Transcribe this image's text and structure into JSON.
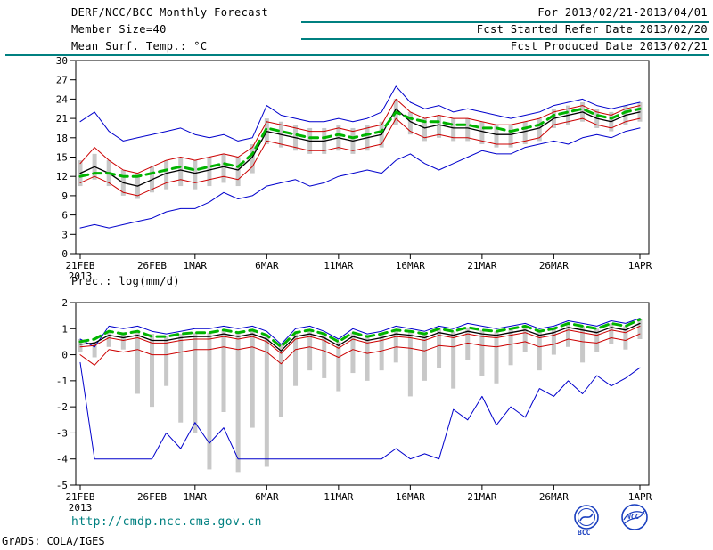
{
  "header": {
    "title": "DERF/NCC/BCC Monthly Forecast",
    "member_size": "Member Size=40",
    "temp_label": "Mean Surf. Temp.: °C",
    "for_range": "For 2013/02/21-2013/04/01",
    "fcst_started": "Fcst Started Refer Date 2013/02/20",
    "fcst_produced": "Fcst Produced Date 2013/02/21"
  },
  "footer": {
    "url": "http://cmdp.ncc.cma.gov.cn",
    "grads_credit": "GrADS: COLA/IGES",
    "logo_bcc": "BCC",
    "logo_ncc": "NCC"
  },
  "colors": {
    "rule": "#008080",
    "url_text": "#008080",
    "blue_line": "#0000cc",
    "red_line": "#cc0000",
    "black_line": "#000000",
    "green_dashed": "#00b400",
    "spread_bar": "#c8c8c8"
  },
  "chart_data": [
    {
      "type": "line",
      "title": "Mean Surf. Temp.: °C",
      "ylabel": "°C",
      "ylim": [
        0,
        30
      ],
      "yticks": [
        0,
        3,
        6,
        9,
        12,
        15,
        18,
        21,
        24,
        27,
        30
      ],
      "x_tick_labels": [
        "21FEB",
        "26FEB",
        "1MAR",
        "6MAR",
        "11MAR",
        "16MAR",
        "21MAR",
        "26MAR",
        "1APR"
      ],
      "x_tick_positions": [
        0,
        5,
        8,
        13,
        18,
        23,
        28,
        33,
        39
      ],
      "x_sub_label": "2013",
      "grid": false,
      "legend": "none",
      "bars": {
        "name": "ensemble-spread-bars",
        "color": "#c8c8c8",
        "low": [
          10.5,
          11.5,
          10.5,
          9,
          8.5,
          9.5,
          10,
          10.5,
          10,
          10.5,
          11,
          10.5,
          12.5,
          17,
          16.5,
          16,
          15.5,
          15.5,
          16,
          15.5,
          16,
          16.5,
          20,
          18.5,
          17.5,
          18,
          17.5,
          17.5,
          17,
          16.5,
          16.5,
          17,
          17.5,
          19.5,
          20,
          20.5,
          19.5,
          19,
          20,
          20.5
        ],
        "high": [
          14.5,
          15.5,
          14.5,
          13,
          12.5,
          13.5,
          14.5,
          15,
          14.5,
          15,
          15.5,
          15,
          17,
          21,
          20.5,
          20,
          19.5,
          19.5,
          20,
          19.5,
          20,
          20.5,
          24,
          22,
          21,
          21.5,
          21,
          21,
          20.5,
          20,
          20,
          20.5,
          21,
          22.5,
          23,
          23.5,
          22.5,
          22,
          23,
          23.5
        ]
      },
      "series": [
        {
          "name": "blue-upper-envelope",
          "color": "#0000cc",
          "width": 1,
          "values": [
            20.5,
            22,
            19,
            17.5,
            18,
            18.5,
            19,
            19.5,
            18.5,
            18,
            18.5,
            17.5,
            18,
            23,
            21.5,
            21,
            20.5,
            20.5,
            21,
            20.5,
            21,
            22,
            26,
            23.5,
            22.5,
            23,
            22,
            22.5,
            22,
            21.5,
            21,
            21.5,
            22,
            23,
            23.5,
            24,
            23,
            22.5,
            23,
            23.5
          ]
        },
        {
          "name": "red-upper-line",
          "color": "#cc0000",
          "width": 1,
          "values": [
            14,
            16.5,
            14.5,
            13,
            12.5,
            13.5,
            14.5,
            15,
            14.5,
            15,
            15.5,
            15,
            16.5,
            20.5,
            20,
            19.5,
            19,
            19,
            19.5,
            19,
            19.5,
            20,
            24,
            22,
            21,
            21.5,
            21,
            21,
            20.5,
            20,
            20,
            20.5,
            21,
            22,
            22.5,
            23,
            22,
            21.5,
            22.5,
            23
          ]
        },
        {
          "name": "red-lower-line",
          "color": "#cc0000",
          "width": 1,
          "values": [
            11,
            12,
            11,
            9.5,
            9,
            10,
            11,
            11.5,
            11,
            11.5,
            12,
            11.5,
            13.5,
            17.5,
            17,
            16.5,
            16,
            16,
            16.5,
            16,
            16.5,
            17,
            21,
            19,
            18,
            18.5,
            18,
            18,
            17.5,
            17,
            17,
            17.5,
            18,
            20,
            20.5,
            21,
            20,
            19.5,
            20.5,
            21
          ]
        },
        {
          "name": "blue-lower-envelope",
          "color": "#0000cc",
          "width": 1,
          "values": [
            4,
            4.5,
            4,
            4.5,
            5,
            5.5,
            6.5,
            7,
            7,
            8,
            9.5,
            8.5,
            9,
            10.5,
            11,
            11.5,
            10.5,
            11,
            12,
            12.5,
            13,
            12.5,
            14.5,
            15.5,
            14,
            13,
            14,
            15,
            16,
            15.5,
            15.5,
            16.5,
            17,
            17.5,
            17,
            18,
            18.5,
            18,
            19,
            19.5
          ]
        },
        {
          "name": "black-line",
          "color": "#000000",
          "width": 1.3,
          "values": [
            12.5,
            13.5,
            12.5,
            11,
            10.5,
            11.5,
            12.5,
            13,
            12.5,
            13,
            13.5,
            13,
            15,
            19,
            18.5,
            18,
            17.5,
            17.5,
            18,
            17.5,
            18,
            18.5,
            22.5,
            20.5,
            19.5,
            20,
            19.5,
            19.5,
            19,
            18.5,
            18.5,
            19,
            19.5,
            21,
            21.5,
            22,
            21,
            20.5,
            21.5,
            22
          ]
        },
        {
          "name": "green-dashed-line",
          "color": "#00b400",
          "width": 3,
          "dash": "9,6",
          "values": [
            12,
            12.5,
            12.5,
            12,
            12,
            12.5,
            13,
            13.5,
            13,
            13.5,
            14,
            13.5,
            15.5,
            19.5,
            19,
            18.5,
            18,
            18,
            18.5,
            18,
            18.5,
            19,
            22,
            21,
            20.5,
            20.5,
            20,
            20,
            19.5,
            19.5,
            19,
            19.5,
            20,
            21.5,
            22,
            22.5,
            21.5,
            21,
            22,
            22.5
          ]
        }
      ]
    },
    {
      "type": "line",
      "title": "Prec.: log(mm/d)",
      "ylabel": "log(mm/d)",
      "ylim": [
        -5,
        2
      ],
      "yticks": [
        -5,
        -4,
        -3,
        -2,
        -1,
        0,
        1,
        2
      ],
      "x_tick_labels": [
        "21FEB",
        "26FEB",
        "1MAR",
        "6MAR",
        "11MAR",
        "16MAR",
        "21MAR",
        "26MAR",
        "1APR"
      ],
      "x_tick_positions": [
        0,
        5,
        8,
        13,
        18,
        23,
        28,
        33,
        39
      ],
      "x_sub_label": "2013",
      "grid": false,
      "legend": "none",
      "bars": {
        "name": "ensemble-spread-bars",
        "color": "#c8c8c8",
        "low": [
          0.1,
          -0.1,
          0.3,
          0.2,
          -1.5,
          -2.0,
          -1.2,
          -2.6,
          -3.0,
          -4.4,
          -2.2,
          -4.5,
          -2.8,
          -4.3,
          -2.4,
          -1.2,
          -0.6,
          -0.9,
          -1.4,
          -0.7,
          -1.0,
          -0.6,
          -0.3,
          -1.6,
          -1.0,
          -0.5,
          -1.3,
          -0.2,
          -0.8,
          -1.1,
          -0.4,
          0.1,
          -0.6,
          0.0,
          0.3,
          -0.3,
          0.1,
          0.4,
          0.2,
          0.6
        ],
        "high": [
          0.6,
          0.5,
          0.9,
          0.8,
          0.9,
          0.8,
          0.7,
          0.8,
          0.85,
          0.85,
          0.95,
          0.85,
          0.95,
          0.75,
          0.4,
          0.85,
          0.95,
          0.8,
          0.5,
          0.85,
          0.7,
          0.8,
          0.95,
          0.9,
          0.8,
          1.0,
          0.9,
          1.05,
          0.95,
          0.9,
          1.0,
          1.1,
          0.9,
          1.0,
          1.2,
          1.1,
          1.0,
          1.2,
          1.1,
          1.35
        ]
      },
      "series": [
        {
          "name": "blue-upper-envelope",
          "color": "#0000cc",
          "width": 1,
          "values": [
            0.6,
            0.3,
            1.1,
            1.0,
            1.1,
            0.9,
            0.8,
            0.9,
            1.0,
            1.0,
            1.1,
            1.0,
            1.1,
            0.9,
            0.4,
            1.0,
            1.1,
            0.9,
            0.6,
            1.0,
            0.8,
            0.9,
            1.1,
            1.0,
            0.9,
            1.1,
            1.0,
            1.2,
            1.1,
            1.0,
            1.1,
            1.2,
            1.0,
            1.1,
            1.3,
            1.2,
            1.1,
            1.3,
            1.2,
            1.4
          ]
        },
        {
          "name": "red-upper-line",
          "color": "#cc0000",
          "width": 1,
          "values": [
            0.3,
            0.35,
            0.65,
            0.55,
            0.65,
            0.45,
            0.45,
            0.55,
            0.6,
            0.6,
            0.7,
            0.6,
            0.7,
            0.5,
            0.05,
            0.6,
            0.7,
            0.55,
            0.25,
            0.6,
            0.45,
            0.55,
            0.7,
            0.65,
            0.55,
            0.75,
            0.65,
            0.8,
            0.7,
            0.65,
            0.75,
            0.85,
            0.65,
            0.75,
            0.95,
            0.85,
            0.75,
            0.95,
            0.85,
            1.1
          ]
        },
        {
          "name": "red-lower-line",
          "color": "#cc0000",
          "width": 1,
          "values": [
            0.0,
            -0.4,
            0.2,
            0.1,
            0.2,
            0.0,
            0.0,
            0.1,
            0.2,
            0.2,
            0.3,
            0.2,
            0.3,
            0.1,
            -0.35,
            0.2,
            0.3,
            0.15,
            -0.1,
            0.2,
            0.05,
            0.15,
            0.3,
            0.25,
            0.15,
            0.35,
            0.3,
            0.45,
            0.35,
            0.3,
            0.4,
            0.5,
            0.3,
            0.4,
            0.6,
            0.5,
            0.45,
            0.65,
            0.55,
            0.8
          ]
        },
        {
          "name": "blue-lower-envelope",
          "color": "#0000cc",
          "width": 1,
          "values": [
            -0.3,
            -4,
            -4,
            -4,
            -4,
            -4,
            -3,
            -3.6,
            -2.6,
            -3.4,
            -2.8,
            -4,
            -4,
            -4,
            -4,
            -4,
            -4,
            -4,
            -4,
            -4,
            -4,
            -4,
            -3.6,
            -4,
            -3.8,
            -4,
            -2.1,
            -2.5,
            -1.6,
            -2.7,
            -2.0,
            -2.4,
            -1.3,
            -1.6,
            -1.0,
            -1.5,
            -0.8,
            -1.2,
            -0.9,
            -0.5
          ]
        },
        {
          "name": "black-line",
          "color": "#000000",
          "width": 1.3,
          "values": [
            0.4,
            0.45,
            0.75,
            0.65,
            0.75,
            0.55,
            0.55,
            0.65,
            0.7,
            0.7,
            0.8,
            0.7,
            0.8,
            0.6,
            0.15,
            0.7,
            0.8,
            0.65,
            0.35,
            0.7,
            0.55,
            0.65,
            0.8,
            0.75,
            0.65,
            0.85,
            0.75,
            0.9,
            0.8,
            0.75,
            0.85,
            0.95,
            0.75,
            0.85,
            1.05,
            0.95,
            0.85,
            1.05,
            0.95,
            1.2
          ]
        },
        {
          "name": "green-dashed-line",
          "color": "#00b400",
          "width": 3,
          "dash": "9,6",
          "values": [
            0.5,
            0.6,
            0.9,
            0.8,
            0.9,
            0.7,
            0.7,
            0.8,
            0.85,
            0.85,
            0.95,
            0.85,
            0.95,
            0.75,
            0.3,
            0.85,
            0.95,
            0.8,
            0.5,
            0.85,
            0.7,
            0.8,
            0.95,
            0.9,
            0.8,
            1.0,
            0.9,
            1.05,
            0.95,
            0.9,
            1.0,
            1.1,
            0.9,
            1.0,
            1.2,
            1.1,
            1.0,
            1.2,
            1.1,
            1.35
          ]
        }
      ]
    }
  ]
}
